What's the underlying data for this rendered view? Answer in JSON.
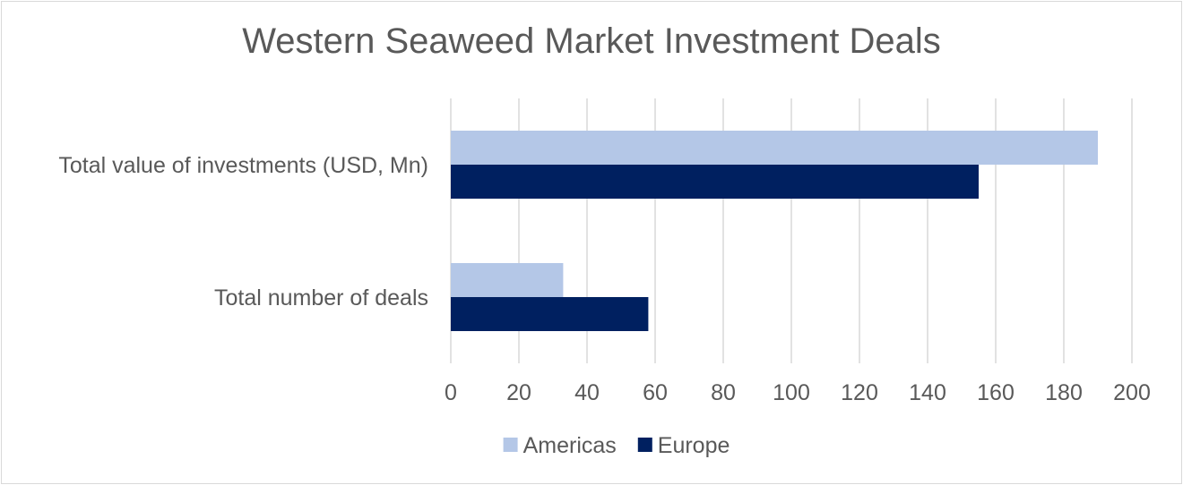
{
  "chart_data": {
    "type": "bar",
    "orientation": "horizontal",
    "title": "Western Seaweed Market Investment Deals",
    "categories": [
      "Total value of investments (USD, Mn)",
      "Total number of deals"
    ],
    "series": [
      {
        "name": "Americas",
        "color": "#b4c7e7",
        "values": [
          190,
          33
        ]
      },
      {
        "name": "Europe",
        "color": "#002060",
        "values": [
          155,
          58
        ]
      }
    ],
    "xlim": [
      0,
      200
    ],
    "xticks": [
      "0",
      "20",
      "40",
      "60",
      "80",
      "100",
      "120",
      "140",
      "160",
      "180",
      "200"
    ],
    "grid": true,
    "legend_position": "bottom"
  }
}
